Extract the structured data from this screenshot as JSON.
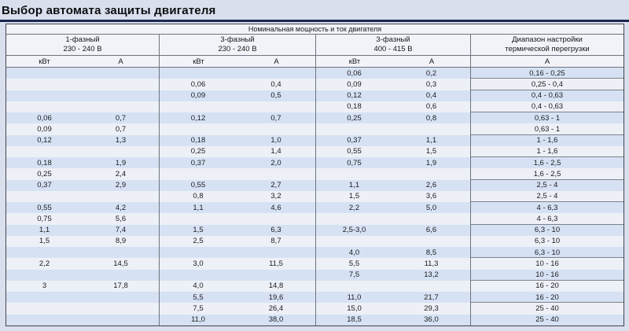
{
  "page": {
    "title": "Выбор автомата защиты двигателя"
  },
  "table": {
    "top_header": "Номинальная мощность и ток двигателя",
    "col_groups": [
      {
        "line1": "1-фазный",
        "line2": "230 - 240 В",
        "sub": [
          "кВт",
          "А"
        ]
      },
      {
        "line1": "3-фазный",
        "line2": "230 - 240 В",
        "sub": [
          "кВт",
          "А"
        ]
      },
      {
        "line1": "3-фазный",
        "line2": "400 - 415 В",
        "sub": [
          "кВт",
          "А"
        ]
      },
      {
        "line1": "Диапазон настройки",
        "line2": "термической перегрузки",
        "sub": [
          "А"
        ]
      }
    ],
    "rows": [
      {
        "cells": [
          "",
          "",
          "",
          "",
          "0,06",
          "0,2",
          "0,16 - 0,25"
        ],
        "group_end": true
      },
      {
        "cells": [
          "",
          "",
          "0,06",
          "0,4",
          "0,09",
          "0,3",
          "0,25 - 0,4"
        ],
        "group_end": true
      },
      {
        "cells": [
          "",
          "",
          "0,09",
          "0,5",
          "0,12",
          "0,4",
          "0,4 - 0,63"
        ],
        "group_end": false
      },
      {
        "cells": [
          "",
          "",
          "",
          "",
          "0,18",
          "0,6",
          "0,4 - 0,63"
        ],
        "group_end": true
      },
      {
        "cells": [
          "0,06",
          "0,7",
          "0,12",
          "0,7",
          "0,25",
          "0,8",
          "0,63 - 1"
        ],
        "group_end": false
      },
      {
        "cells": [
          "0,09",
          "0,7",
          "",
          "",
          "",
          "",
          "0,63 - 1"
        ],
        "group_end": true
      },
      {
        "cells": [
          "0,12",
          "1,3",
          "0,18",
          "1,0",
          "0,37",
          "1,1",
          "1 - 1,6"
        ],
        "group_end": false
      },
      {
        "cells": [
          "",
          "",
          "0,25",
          "1,4",
          "0,55",
          "1,5",
          "1 - 1,6"
        ],
        "group_end": true
      },
      {
        "cells": [
          "0,18",
          "1,9",
          "0,37",
          "2,0",
          "0,75",
          "1,9",
          "1,6 - 2,5"
        ],
        "group_end": false
      },
      {
        "cells": [
          "0,25",
          "2,4",
          "",
          "",
          "",
          "",
          "1,6 - 2,5"
        ],
        "group_end": true
      },
      {
        "cells": [
          "0,37",
          "2,9",
          "0,55",
          "2,7",
          "1,1",
          "2,6",
          "2,5 - 4"
        ],
        "group_end": false
      },
      {
        "cells": [
          "",
          "",
          "0,8",
          "3,2",
          "1,5",
          "3,6",
          "2,5 - 4"
        ],
        "group_end": true
      },
      {
        "cells": [
          "0,55",
          "4,2",
          "1,1",
          "4,6",
          "2,2",
          "5,0",
          "4 - 6,3"
        ],
        "group_end": false
      },
      {
        "cells": [
          "0,75",
          "5,6",
          "",
          "",
          "",
          "",
          "4 - 6,3"
        ],
        "group_end": true
      },
      {
        "cells": [
          "1,1",
          "7,4",
          "1,5",
          "6,3",
          "2,5-3,0",
          "6,6",
          "6,3 - 10"
        ],
        "group_end": false
      },
      {
        "cells": [
          "1,5",
          "8,9",
          "2,5",
          "8,7",
          "",
          "",
          "6,3 - 10"
        ],
        "group_end": false
      },
      {
        "cells": [
          "",
          "",
          "",
          "",
          "4,0",
          "8,5",
          "6,3 - 10"
        ],
        "group_end": true
      },
      {
        "cells": [
          "2,2",
          "14,5",
          "3,0",
          "11,5",
          "5,5",
          "11,3",
          "10 - 16"
        ],
        "group_end": false
      },
      {
        "cells": [
          "",
          "",
          "",
          "",
          "7,5",
          "13,2",
          "10 - 16"
        ],
        "group_end": true
      },
      {
        "cells": [
          "3",
          "17,8",
          "4,0",
          "14,8",
          "",
          "",
          "16 - 20"
        ],
        "group_end": false
      },
      {
        "cells": [
          "",
          "",
          "5,5",
          "19,6",
          "11,0",
          "21,7",
          "16 - 20"
        ],
        "group_end": true
      },
      {
        "cells": [
          "",
          "",
          "7,5",
          "26,4",
          "15,0",
          "29,3",
          "25 - 40"
        ],
        "group_end": false
      },
      {
        "cells": [
          "",
          "",
          "11,0",
          "38,0",
          "18,5",
          "36,0",
          "25 - 40"
        ],
        "group_end": false
      }
    ]
  },
  "colors": {
    "page_background": "#d9dfed",
    "header_background": "#f2f3f8",
    "stripe_blue": "#d6e2f4",
    "stripe_light": "#edf0f6",
    "title_rule": "#1b294f",
    "border": "#6e737c"
  }
}
